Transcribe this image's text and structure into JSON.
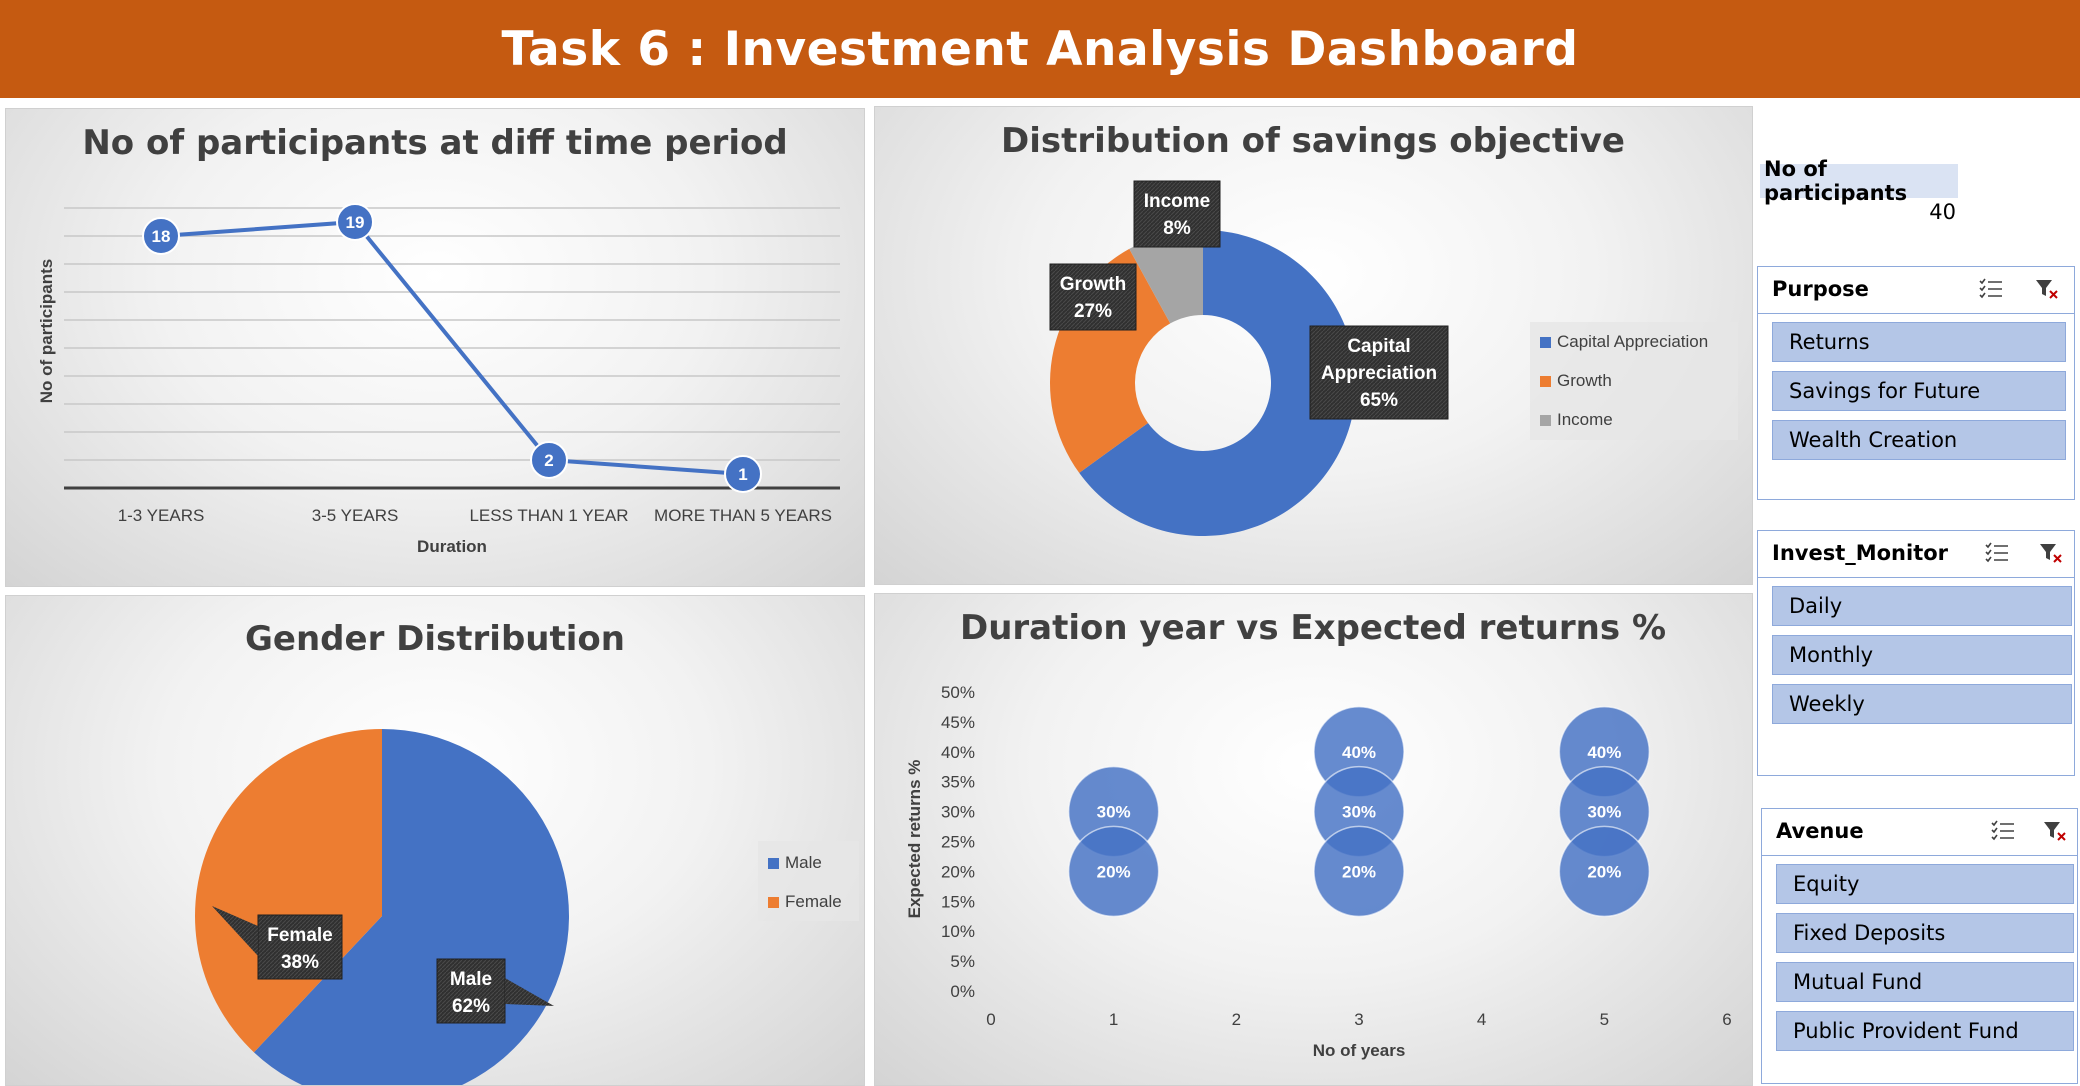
{
  "header": {
    "title": "Task 6 : Investment Analysis Dashboard"
  },
  "summary": {
    "label": "No of participants",
    "value": "40"
  },
  "slicers": {
    "purpose": {
      "title": "Purpose",
      "items": [
        "Returns",
        "Savings for Future",
        "Wealth Creation"
      ]
    },
    "invest_monitor": {
      "title": "Invest_Monitor",
      "items": [
        "Daily",
        "Monthly",
        "Weekly"
      ]
    },
    "avenue": {
      "title": "Avenue",
      "items": [
        "Equity",
        "Fixed Deposits",
        "Mutual Fund",
        "Public Provident Fund"
      ]
    }
  },
  "colors": {
    "banner": "#c55a11",
    "blue": "#4472c4",
    "orange": "#ed7d31",
    "gray": "#a5a5a5",
    "slicer_item": "#b4c6e7"
  },
  "chart_data": [
    {
      "type": "line",
      "title": "No of participants at diff time period",
      "xlabel": "Duration",
      "ylabel": "No of participants",
      "categories": [
        "1-3 YEARS",
        "3-5 YEARS",
        "LESS THAN 1 YEAR",
        "MORE THAN 5 YEARS"
      ],
      "values": [
        18,
        19,
        2,
        1
      ],
      "ylim": [
        0,
        20
      ],
      "grid": true
    },
    {
      "type": "pie",
      "title": "Distribution of savings objective",
      "categories": [
        "Capital Appreciation",
        "Growth",
        "Income"
      ],
      "values": [
        65,
        27,
        8
      ],
      "labels": [
        "65%",
        "27%",
        "8%"
      ],
      "label_names": [
        "Capital Appreciation",
        "Growth",
        "Income"
      ],
      "donut": true,
      "legend": "right"
    },
    {
      "type": "pie",
      "title": "Gender Distribution",
      "categories": [
        "Male",
        "Female"
      ],
      "values": [
        62,
        38
      ],
      "labels": [
        "62%",
        "38%"
      ],
      "legend": "right"
    },
    {
      "type": "scatter",
      "title": "Duration year vs Expected returns %",
      "xlabel": "No of years",
      "ylabel": "Expected returns %",
      "x": [
        1,
        1,
        3,
        3,
        3,
        5,
        5,
        5
      ],
      "y": [
        30,
        20,
        40,
        30,
        20,
        40,
        30,
        20
      ],
      "point_labels": [
        "30%",
        "20%",
        "40%",
        "30%",
        "20%",
        "40%",
        "30%",
        "20%"
      ],
      "xlim": [
        0,
        6
      ],
      "ylim": [
        0,
        50
      ],
      "xticks": [
        "0",
        "1",
        "2",
        "3",
        "4",
        "5",
        "6"
      ],
      "yticks": [
        "0%",
        "5%",
        "10%",
        "15%",
        "20%",
        "25%",
        "30%",
        "35%",
        "40%",
        "45%",
        "50%"
      ]
    }
  ]
}
